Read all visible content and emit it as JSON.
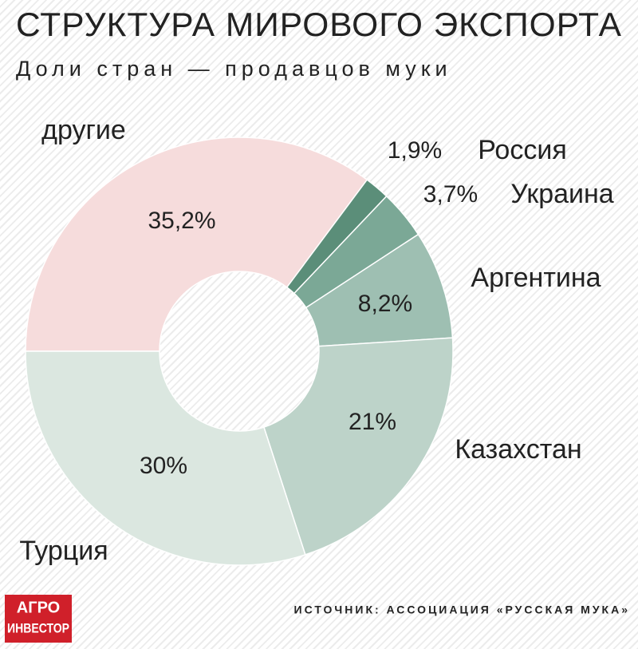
{
  "chart_data": {
    "type": "donut",
    "title": "СТРУКТУРА МИРОВОГО ЭКСПОРТА",
    "subtitle": "Доли стран — продавцов муки",
    "categories": [
      "другие",
      "Россия",
      "Украина",
      "Аргентина",
      "Казахстан",
      "Турция"
    ],
    "values": [
      35.2,
      1.9,
      3.7,
      8.2,
      21,
      30
    ],
    "value_labels": [
      "35,2%",
      "1,9%",
      "3,7%",
      "8,2%",
      "21%",
      "30%"
    ],
    "colors": [
      "#f6dcdc",
      "#5b8e79",
      "#7ba896",
      "#9ebfb2",
      "#bdd3c9",
      "#dbe7e0"
    ],
    "source": "ИСТОЧНИК: АССОЦИАЦИЯ «РУССКАЯ МУКА»",
    "logo": [
      "АГРО",
      "ИНВЕСТОР"
    ]
  }
}
